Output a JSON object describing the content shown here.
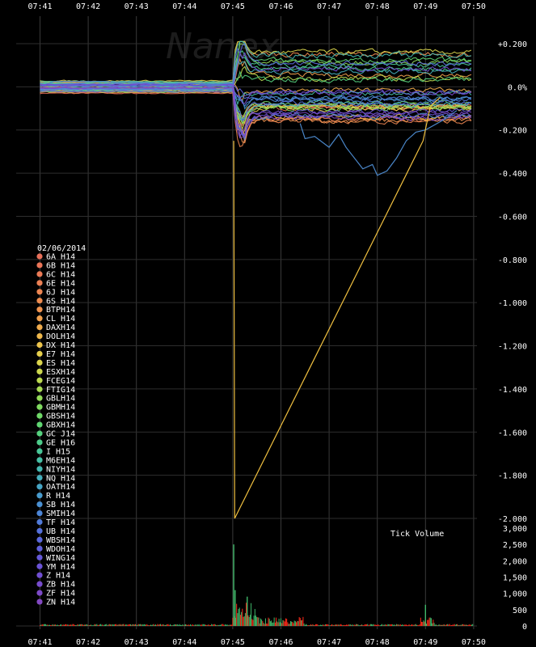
{
  "chart_data": [
    {
      "type": "line",
      "title": "",
      "date_label": "02/06/2014",
      "watermark": "Nanex",
      "time_ticks": [
        "07:41",
        "07:42",
        "07:43",
        "07:44",
        "07:45",
        "07:46",
        "07:47",
        "07:48",
        "07:49",
        "07:50"
      ],
      "y_ticks": [
        {
          "v": 0.2,
          "label": "+0.200"
        },
        {
          "v": 0.0,
          "label": "0.0%"
        },
        {
          "v": -0.2,
          "label": "-0.200"
        },
        {
          "v": -0.4,
          "label": "-0.400"
        },
        {
          "v": -0.6,
          "label": "-0.600"
        },
        {
          "v": -0.8,
          "label": "-0.800"
        },
        {
          "v": -1.0,
          "label": "-1.000"
        },
        {
          "v": -1.2,
          "label": "-1.200"
        },
        {
          "v": -1.4,
          "label": "-1.400"
        },
        {
          "v": -1.6,
          "label": "-1.600"
        },
        {
          "v": -1.8,
          "label": "-1.800"
        },
        {
          "v": -2.0,
          "label": "-2.000"
        }
      ],
      "ylim": [
        -2.0,
        0.25
      ],
      "grid": true,
      "legend_position": "left",
      "series": [
        {
          "name": "6A  H14",
          "color": "#e8705a"
        },
        {
          "name": "6B  H14",
          "color": "#ea7558"
        },
        {
          "name": "6C  H14",
          "color": "#eb7a56"
        },
        {
          "name": "6E  H14",
          "color": "#ec8054"
        },
        {
          "name": "6J  H14",
          "color": "#ed8652"
        },
        {
          "name": "6S  H14",
          "color": "#ee8c50"
        },
        {
          "name": "BTPH14",
          "color": "#ef934f"
        },
        {
          "name": "CL  H14",
          "color": "#f0a04e"
        },
        {
          "name": "DAXH14",
          "color": "#f0ac4d"
        },
        {
          "name": "DOLH14",
          "color": "#efb84c"
        },
        {
          "name": "DX  H14",
          "color": "#ecc44c"
        },
        {
          "name": "E7  H14",
          "color": "#e6cf4c"
        },
        {
          "name": "ES  H14",
          "color": "#dcd64d"
        },
        {
          "name": "ESXH14",
          "color": "#cdd94e"
        },
        {
          "name": "FCEG14",
          "color": "#bcdb50"
        },
        {
          "name": "FTIG14",
          "color": "#a8dc54"
        },
        {
          "name": "GBLH14",
          "color": "#93dc59"
        },
        {
          "name": "GBMH14",
          "color": "#80db60"
        },
        {
          "name": "GBSH14",
          "color": "#6fd968"
        },
        {
          "name": "GBXH14",
          "color": "#60d672"
        },
        {
          "name": "GC  J14",
          "color": "#55d27e"
        },
        {
          "name": "GE  H16",
          "color": "#4dcd8b"
        },
        {
          "name": "I   H15",
          "color": "#48c798"
        },
        {
          "name": "M6EH14",
          "color": "#46c0a5"
        },
        {
          "name": "NIYH14",
          "color": "#45b8b1"
        },
        {
          "name": "NQ  H14",
          "color": "#45afbc"
        },
        {
          "name": "OATH14",
          "color": "#46a5c5"
        },
        {
          "name": "R   H14",
          "color": "#489bcd"
        },
        {
          "name": "SB  H14",
          "color": "#4a90d3"
        },
        {
          "name": "SMIH14",
          "color": "#4d86d7"
        },
        {
          "name": "TF  H14",
          "color": "#517bda"
        },
        {
          "name": "UB  H14",
          "color": "#5571dc"
        },
        {
          "name": "WBSH14",
          "color": "#5a68dc"
        },
        {
          "name": "WDOH14",
          "color": "#5f60db"
        },
        {
          "name": "WING14",
          "color": "#6559d9"
        },
        {
          "name": "YM  H14",
          "color": "#6b53d6"
        },
        {
          "name": "Z   H14",
          "color": "#714fd2"
        },
        {
          "name": "ZB  H14",
          "color": "#774ccd"
        },
        {
          "name": "ZF  H14",
          "color": "#7d4ac8"
        },
        {
          "name": "ZN  H14",
          "color": "#8349c2"
        }
      ],
      "highlight_lines": [
        {
          "color": "#4a86c8",
          "points": [
            [
              41.2,
              0.02
            ],
            [
              41.3,
              0.025
            ],
            [
              41.45,
              0.025
            ],
            [
              41.9,
              0.025
            ],
            [
              42.4,
              0.025
            ],
            [
              42.5,
              0.022
            ],
            [
              43.0,
              0.022
            ],
            [
              43.3,
              0.018
            ],
            [
              43.6,
              0.01
            ],
            [
              44.0,
              0.02
            ],
            [
              44.6,
              0.008
            ],
            [
              44.9,
              0.018
            ],
            [
              45.0,
              0.015
            ]
          ]
        },
        {
          "color": "#4a86c8",
          "points": [
            [
              46.4,
              -0.17
            ],
            [
              46.5,
              -0.24
            ],
            [
              46.7,
              -0.23
            ],
            [
              47.0,
              -0.28
            ],
            [
              47.2,
              -0.22
            ],
            [
              47.35,
              -0.28
            ],
            [
              47.7,
              -0.38
            ],
            [
              47.9,
              -0.36
            ],
            [
              48.0,
              -0.41
            ],
            [
              48.2,
              -0.39
            ],
            [
              48.4,
              -0.33
            ],
            [
              48.6,
              -0.25
            ],
            [
              48.8,
              -0.21
            ],
            [
              49.0,
              -0.2
            ],
            [
              49.4,
              -0.15
            ],
            [
              49.65,
              -0.11
            ]
          ]
        },
        {
          "color": "#f0c040",
          "points": [
            [
              45.02,
              -0.25
            ],
            [
              45.04,
              -2.0
            ],
            [
              48.95,
              -0.25
            ],
            [
              49.1,
              -0.09
            ],
            [
              49.3,
              -0.05
            ]
          ]
        }
      ]
    },
    {
      "type": "bar",
      "title": "Tick Volume",
      "y_ticks": [
        {
          "v": 3000,
          "label": "3,000"
        },
        {
          "v": 2500,
          "label": "2,500"
        },
        {
          "v": 2000,
          "label": "2,000"
        },
        {
          "v": 1500,
          "label": "1,500"
        },
        {
          "v": 1000,
          "label": "1,000"
        },
        {
          "v": 500,
          "label": "500"
        },
        {
          "v": 0,
          "label": "0"
        }
      ],
      "ylim": [
        0,
        3000
      ],
      "notable_spikes": [
        {
          "time": 45.02,
          "value": 2500
        },
        {
          "time": 45.05,
          "value": 1100
        },
        {
          "time": 45.3,
          "value": 900
        },
        {
          "time": 49.0,
          "value": 650
        }
      ]
    }
  ]
}
